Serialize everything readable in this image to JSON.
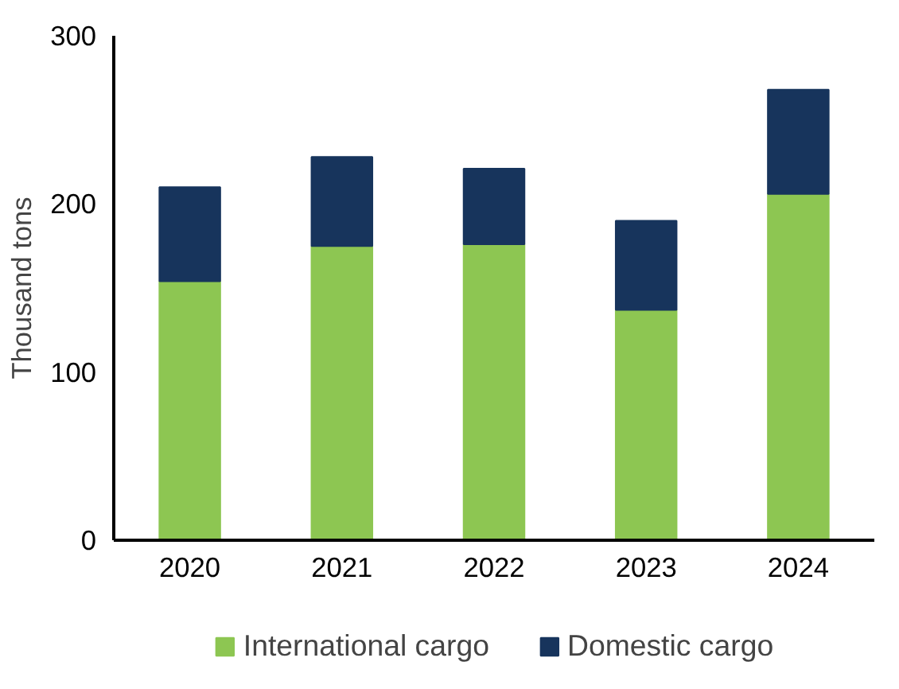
{
  "chart_data": {
    "type": "bar",
    "stacked": true,
    "ylabel": "Thousand tons",
    "categories": [
      "2020",
      "2021",
      "2022",
      "2023",
      "2024"
    ],
    "series": [
      {
        "name": "International cargo",
        "color": "#8dc652",
        "values": [
          154,
          175,
          176,
          137,
          206
        ]
      },
      {
        "name": "Domestic cargo",
        "color": "#17345c",
        "values": [
          56,
          53,
          45,
          53,
          62
        ]
      }
    ],
    "ylim": [
      0,
      300
    ],
    "yticks": [
      0,
      100,
      200,
      300
    ],
    "grid": false,
    "legend": "bottom"
  }
}
